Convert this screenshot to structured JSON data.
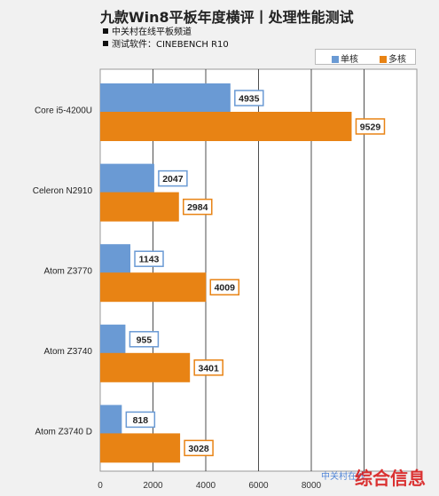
{
  "chart_data": {
    "type": "bar",
    "orientation": "horizontal",
    "title": "九款Win8平板年度横评丨处理性能测试",
    "notes": [
      "中关村在线平板频道",
      "测试软件：CINEBENCH R10"
    ],
    "categories": [
      "Core i5-4200U",
      "Celeron N2910",
      "Atom Z3770",
      "Atom Z3740",
      "Atom Z3740 D"
    ],
    "series": [
      {
        "name": "单核",
        "color": "#6a9ad4",
        "values": [
          4935,
          2047,
          1143,
          955,
          818
        ]
      },
      {
        "name": "多核",
        "color": "#e88314",
        "values": [
          9529,
          2984,
          4009,
          3401,
          3028
        ]
      }
    ],
    "xlim": [
      0,
      12000
    ],
    "xticks": [
      0,
      2000,
      4000,
      6000,
      8000
    ],
    "grid": true,
    "legend_position": "top-right",
    "xlabel": "",
    "ylabel": ""
  },
  "watermark": {
    "brand": "中关村在线",
    "text": "综合信息"
  }
}
